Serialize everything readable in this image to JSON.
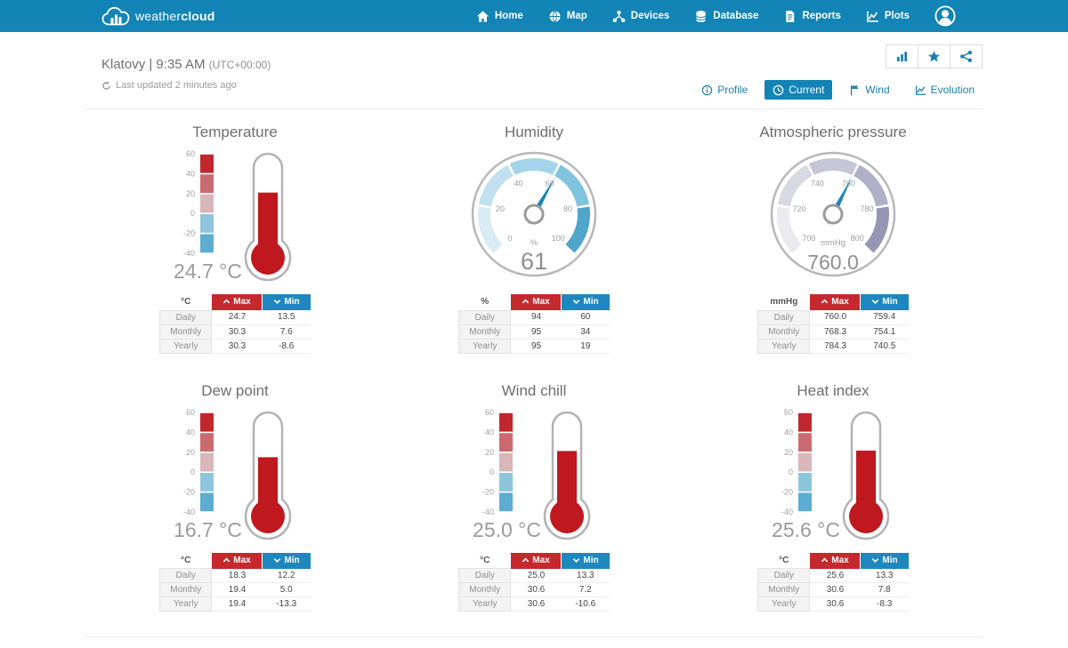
{
  "header": {
    "brand": {
      "part1": "weather",
      "part2": "cloud"
    },
    "nav": [
      {
        "label": "Home",
        "icon": "home-icon"
      },
      {
        "label": "Map",
        "icon": "globe-icon"
      },
      {
        "label": "Devices",
        "icon": "devices-icon"
      },
      {
        "label": "Database",
        "icon": "database-icon"
      },
      {
        "label": "Reports",
        "icon": "reports-icon"
      },
      {
        "label": "Plots",
        "icon": "plots-icon"
      }
    ]
  },
  "station": {
    "name_time": "Klatovy | 9:35 AM",
    "utc": "(UTC+00:00)",
    "last_updated": "Last updated 2 minutes ago"
  },
  "actions": [
    {
      "name": "stats",
      "icon": "bar-chart-icon"
    },
    {
      "name": "favorite",
      "icon": "star-icon"
    },
    {
      "name": "share",
      "icon": "share-icon"
    }
  ],
  "tabs": [
    {
      "label": "Profile",
      "icon": "info-icon",
      "active": false
    },
    {
      "label": "Current",
      "icon": "clock-icon",
      "active": true
    },
    {
      "label": "Wind",
      "icon": "wind-flag-icon",
      "active": false
    },
    {
      "label": "Evolution",
      "icon": "evolution-icon",
      "active": false
    }
  ],
  "stats_labels": {
    "max": "Max",
    "min": "Min",
    "periods": [
      "Daily",
      "Monthly",
      "Yearly"
    ]
  },
  "colors": {
    "navbar_blue": "#1284b5",
    "accent_blue": "#1b7fad",
    "max_red": "#c5292e",
    "min_blue": "#1f87be",
    "thermo_fill": "#bf181f",
    "thermo_outline": "#b3b3b3",
    "needle": "#1a86b5",
    "value_text": "#9b9b9b",
    "thermo_scale": [
      "#c1272d",
      "#cb6a6e",
      "#d9b6b8",
      "#8dc5dc",
      "#5cadd1"
    ]
  },
  "widgets": [
    {
      "type": "thermometer",
      "title": "Temperature",
      "unit": "°C",
      "value": 24.7,
      "display_value": "24.7 °C",
      "scale": {
        "min": -40,
        "max": 60,
        "ticks": [
          60,
          40,
          20,
          0,
          -20,
          -40
        ]
      },
      "table": {
        "unit": "°C",
        "rows": [
          {
            "period": "Daily",
            "max": "24.7",
            "min": "13.5"
          },
          {
            "period": "Monthly",
            "max": "30.3",
            "min": "7.6"
          },
          {
            "period": "Yearly",
            "max": "30.3",
            "min": "-8.6"
          }
        ]
      }
    },
    {
      "type": "gauge",
      "title": "Humidity",
      "unit": "%",
      "value": 61,
      "display_value": "61",
      "value_font": 27,
      "scale": {
        "min": 0,
        "max": 100,
        "ticks": [
          0,
          20,
          40,
          60,
          80,
          100
        ]
      },
      "palette": [
        "#d8ebf5",
        "#c1e1f0",
        "#a3d4e9",
        "#7fc3de",
        "#4fa5ca"
      ],
      "table": {
        "unit": "%",
        "rows": [
          {
            "period": "Daily",
            "max": "94",
            "min": "60"
          },
          {
            "period": "Monthly",
            "max": "95",
            "min": "34"
          },
          {
            "period": "Yearly",
            "max": "95",
            "min": "19"
          }
        ]
      }
    },
    {
      "type": "gauge",
      "title": "Atmospheric pressure",
      "unit": "mmHg",
      "value": 760.0,
      "display_value": "760.0",
      "value_font": 23,
      "scale": {
        "min": 700,
        "max": 800,
        "ticks": [
          700,
          720,
          740,
          760,
          780,
          800
        ]
      },
      "palette": [
        "#e9e9ef",
        "#d9d9e3",
        "#c6c6d6",
        "#b0b0c8",
        "#9595b4"
      ],
      "table": {
        "unit": "mmHg",
        "rows": [
          {
            "period": "Daily",
            "max": "760.0",
            "min": "759.4"
          },
          {
            "period": "Monthly",
            "max": "768.3",
            "min": "754.1"
          },
          {
            "period": "Yearly",
            "max": "784.3",
            "min": "740.5"
          }
        ]
      }
    },
    {
      "type": "thermometer",
      "title": "Dew point",
      "unit": "°C",
      "value": 16.7,
      "display_value": "16.7 °C",
      "scale": {
        "min": -40,
        "max": 60,
        "ticks": [
          60,
          40,
          20,
          0,
          -20,
          -40
        ]
      },
      "table": {
        "unit": "°C",
        "rows": [
          {
            "period": "Daily",
            "max": "18.3",
            "min": "12.2"
          },
          {
            "period": "Monthly",
            "max": "19.4",
            "min": "5.0"
          },
          {
            "period": "Yearly",
            "max": "19.4",
            "min": "-13.3"
          }
        ]
      }
    },
    {
      "type": "thermometer",
      "title": "Wind chill",
      "unit": "°C",
      "value": 25.0,
      "display_value": "25.0 °C",
      "scale": {
        "min": -40,
        "max": 60,
        "ticks": [
          60,
          40,
          20,
          0,
          -20,
          -40
        ]
      },
      "table": {
        "unit": "°C",
        "rows": [
          {
            "period": "Daily",
            "max": "25.0",
            "min": "13.3"
          },
          {
            "period": "Monthly",
            "max": "30.6",
            "min": "7.2"
          },
          {
            "period": "Yearly",
            "max": "30.6",
            "min": "-10.6"
          }
        ]
      }
    },
    {
      "type": "thermometer",
      "title": "Heat index",
      "unit": "°C",
      "value": 25.6,
      "display_value": "25.6 °C",
      "scale": {
        "min": -40,
        "max": 60,
        "ticks": [
          60,
          40,
          20,
          0,
          -20,
          -40
        ]
      },
      "table": {
        "unit": "°C",
        "rows": [
          {
            "period": "Daily",
            "max": "25.6",
            "min": "13.3"
          },
          {
            "period": "Monthly",
            "max": "30.6",
            "min": "7.8"
          },
          {
            "period": "Yearly",
            "max": "30.6",
            "min": "-8.3"
          }
        ]
      }
    }
  ]
}
